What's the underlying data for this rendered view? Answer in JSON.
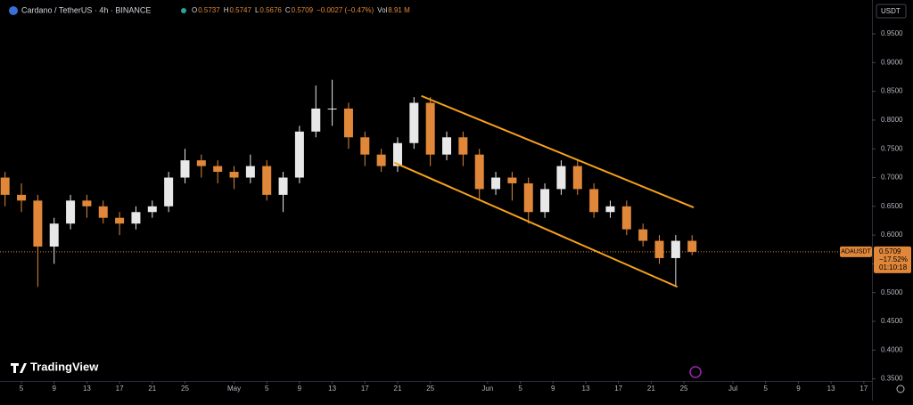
{
  "chart_data": {
    "type": "candlestick",
    "header": {
      "symbol": "Cardano / TetherUS · 4h · BINANCE",
      "ohlc": [
        {
          "label": "O",
          "value": "0.5737"
        },
        {
          "label": "H",
          "value": "0.5747"
        },
        {
          "label": "L",
          "value": "0.5676"
        },
        {
          "label": "C",
          "value": "0.5709"
        }
      ],
      "change": "−0.0027 (−0.47%)",
      "volume_label": "Vol",
      "volume": "8.91 M"
    },
    "currency": "USDT",
    "ticker": "ADAUSDT",
    "last_price": 0.5709,
    "last_change": "−17.52%",
    "countdown": "01:10:18",
    "brand": "TradingView",
    "up_color": "#e8e8e8",
    "down_color": "#e0873a",
    "x": [
      3,
      5,
      7,
      9,
      11,
      13,
      15,
      17,
      19,
      21,
      23,
      25,
      27,
      29,
      31,
      33,
      35,
      37,
      39,
      41,
      43,
      45,
      47,
      49,
      51,
      53,
      55,
      57,
      59,
      61,
      63,
      65,
      67,
      69,
      71,
      73,
      75,
      77,
      79,
      81,
      83,
      85,
      87
    ],
    "open": [
      0.7,
      0.67,
      0.66,
      0.58,
      0.62,
      0.66,
      0.65,
      0.63,
      0.62,
      0.64,
      0.65,
      0.7,
      0.73,
      0.72,
      0.71,
      0.7,
      0.72,
      0.67,
      0.7,
      0.78,
      0.82,
      0.82,
      0.77,
      0.74,
      0.72,
      0.76,
      0.83,
      0.74,
      0.77,
      0.74,
      0.68,
      0.7,
      0.69,
      0.64,
      0.68,
      0.72,
      0.68,
      0.64,
      0.65,
      0.61,
      0.59,
      0.56,
      0.59
    ],
    "high": [
      0.71,
      0.69,
      0.67,
      0.63,
      0.67,
      0.67,
      0.66,
      0.64,
      0.65,
      0.66,
      0.71,
      0.75,
      0.74,
      0.73,
      0.72,
      0.74,
      0.73,
      0.71,
      0.79,
      0.86,
      0.87,
      0.83,
      0.78,
      0.75,
      0.77,
      0.84,
      0.84,
      0.78,
      0.78,
      0.75,
      0.71,
      0.71,
      0.7,
      0.69,
      0.73,
      0.73,
      0.69,
      0.66,
      0.66,
      0.62,
      0.6,
      0.6,
      0.6
    ],
    "low": [
      0.65,
      0.64,
      0.51,
      0.55,
      0.61,
      0.63,
      0.62,
      0.6,
      0.61,
      0.63,
      0.64,
      0.69,
      0.7,
      0.69,
      0.68,
      0.69,
      0.66,
      0.64,
      0.69,
      0.77,
      0.79,
      0.75,
      0.72,
      0.71,
      0.71,
      0.75,
      0.72,
      0.73,
      0.72,
      0.66,
      0.67,
      0.66,
      0.62,
      0.63,
      0.67,
      0.67,
      0.63,
      0.63,
      0.6,
      0.58,
      0.55,
      0.51,
      0.565
    ],
    "close": [
      0.67,
      0.66,
      0.58,
      0.62,
      0.66,
      0.65,
      0.63,
      0.62,
      0.64,
      0.65,
      0.7,
      0.73,
      0.72,
      0.71,
      0.7,
      0.72,
      0.67,
      0.7,
      0.78,
      0.82,
      0.82,
      0.77,
      0.74,
      0.72,
      0.76,
      0.83,
      0.74,
      0.77,
      0.74,
      0.68,
      0.7,
      0.69,
      0.64,
      0.68,
      0.72,
      0.68,
      0.64,
      0.65,
      0.61,
      0.59,
      0.56,
      0.59,
      0.5709
    ],
    "drawings": [
      {
        "color": "#f7a21b",
        "x": [
          53.9,
          87.2
        ],
        "y": [
          0.842,
          0.648
        ]
      },
      {
        "color": "#f7a21b",
        "x": [
          50.6,
          85.2
        ],
        "y": [
          0.726,
          0.51
        ]
      }
    ],
    "xlim": [
      2.38,
      109.0
    ],
    "xticks": [
      {
        "value": 5,
        "label": "5"
      },
      {
        "value": 9,
        "label": "9"
      },
      {
        "value": 13,
        "label": "13"
      },
      {
        "value": 17,
        "label": "17"
      },
      {
        "value": 21,
        "label": "21"
      },
      {
        "value": 25,
        "label": "25"
      },
      {
        "value": 31,
        "label": "May"
      },
      {
        "value": 35,
        "label": "5"
      },
      {
        "value": 39,
        "label": "9"
      },
      {
        "value": 43,
        "label": "13"
      },
      {
        "value": 47,
        "label": "17"
      },
      {
        "value": 51,
        "label": "21"
      },
      {
        "value": 55,
        "label": "25"
      },
      {
        "value": 62,
        "label": "Jun"
      },
      {
        "value": 66,
        "label": "5"
      },
      {
        "value": 70,
        "label": "9"
      },
      {
        "value": 74,
        "label": "13"
      },
      {
        "value": 78,
        "label": "17"
      },
      {
        "value": 82,
        "label": "21"
      },
      {
        "value": 86,
        "label": "25"
      },
      {
        "value": 92,
        "label": "Jul"
      },
      {
        "value": 96,
        "label": "5"
      },
      {
        "value": 100,
        "label": "9"
      },
      {
        "value": 104,
        "label": "13"
      },
      {
        "value": 108,
        "label": "17"
      }
    ],
    "ylim": [
      0.3463,
      1.0088
    ],
    "yticks": [
      {
        "value": 0.35,
        "label": "0.3500"
      },
      {
        "value": 0.4,
        "label": "0.4000"
      },
      {
        "value": 0.45,
        "label": "0.4500"
      },
      {
        "value": 0.5,
        "label": "0.5000"
      },
      {
        "value": 0.55,
        "label": "0.5500"
      },
      {
        "value": 0.6,
        "label": "0.6000"
      },
      {
        "value": 0.65,
        "label": "0.6500"
      },
      {
        "value": 0.7,
        "label": "0.7000"
      },
      {
        "value": 0.75,
        "label": "0.7500"
      },
      {
        "value": 0.8,
        "label": "0.8000"
      },
      {
        "value": 0.85,
        "label": "0.8500"
      },
      {
        "value": 0.9,
        "label": "0.9000"
      },
      {
        "value": 0.95,
        "label": "0.9500"
      }
    ]
  }
}
